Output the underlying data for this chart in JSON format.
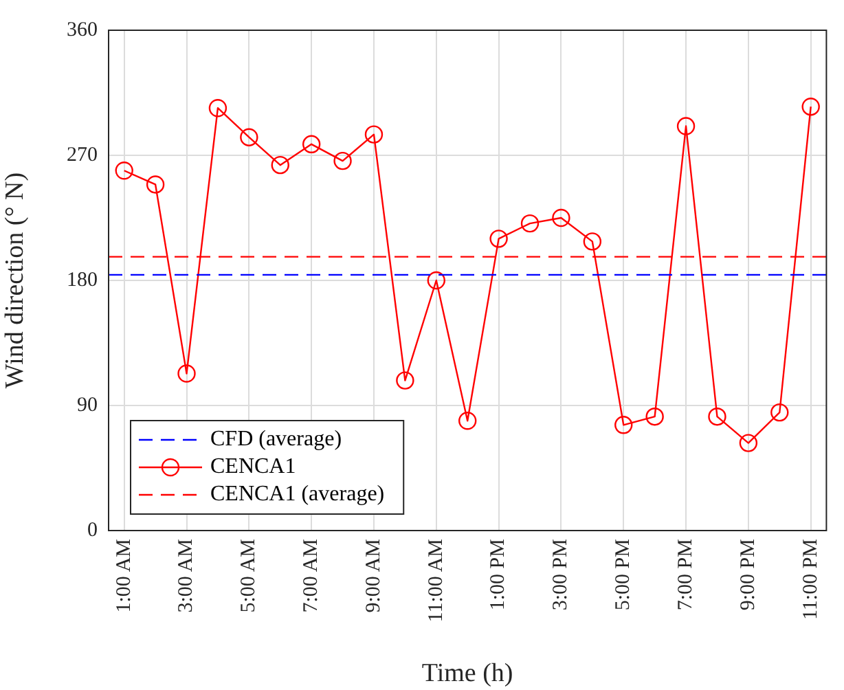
{
  "chart_data": {
    "type": "line",
    "xlabel": "Time (h)",
    "ylabel": "Wind direction (° N)",
    "categories": [
      "1:00 AM",
      null,
      "3:00 AM",
      null,
      "5:00 AM",
      null,
      "7:00 AM",
      null,
      "9:00 AM",
      null,
      "11:00 AM",
      null,
      "1:00 PM",
      null,
      "3:00 PM",
      null,
      "5:00 PM",
      null,
      "7:00 PM",
      null,
      "9:00 PM",
      null,
      "11:00 PM"
    ],
    "series": [
      {
        "name": "CENCA1",
        "color": "#ff0000",
        "values": [
          259,
          249,
          113,
          304,
          283,
          263,
          278,
          266,
          285,
          108,
          180,
          79,
          210,
          221,
          225,
          208,
          76,
          82,
          291,
          82,
          63,
          85,
          305
        ]
      }
    ],
    "ref_lines": [
      {
        "axis": "y",
        "value": 184,
        "label": "CFD (average)",
        "color": "#0000ff",
        "line_style": "dashed"
      },
      {
        "axis": "y",
        "value": 197,
        "label": "CENCA1 (average)",
        "color": "#ff0000",
        "line_style": "dashed"
      }
    ],
    "ylim": [
      0,
      360
    ],
    "yticks": [
      0,
      90,
      180,
      270,
      360
    ],
    "grid": true,
    "legend": "bottom left",
    "marker": "circle",
    "line_style": "solid"
  }
}
